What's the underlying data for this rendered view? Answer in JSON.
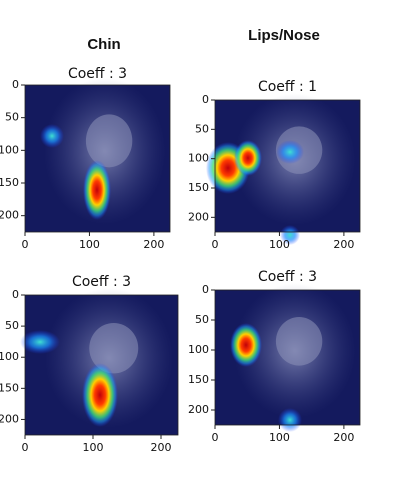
{
  "columns": [
    "Chin",
    "Lips/Nose"
  ],
  "panels": [
    {
      "title": "Coeff : 3",
      "xticks": [
        0,
        100,
        200
      ],
      "yticks": [
        0,
        50,
        100,
        150,
        200
      ]
    },
    {
      "title": "Coeff : 1",
      "xticks": [
        0,
        100,
        200
      ],
      "yticks": [
        0,
        50,
        100,
        150,
        200
      ]
    },
    {
      "title": "Coeff : 3",
      "xticks": [
        0,
        100,
        200
      ],
      "yticks": [
        0,
        50,
        100,
        150,
        200
      ]
    },
    {
      "title": "Coeff : 3",
      "xticks": [
        0,
        100,
        200
      ],
      "yticks": [
        0,
        50,
        100,
        150,
        200
      ]
    }
  ]
}
